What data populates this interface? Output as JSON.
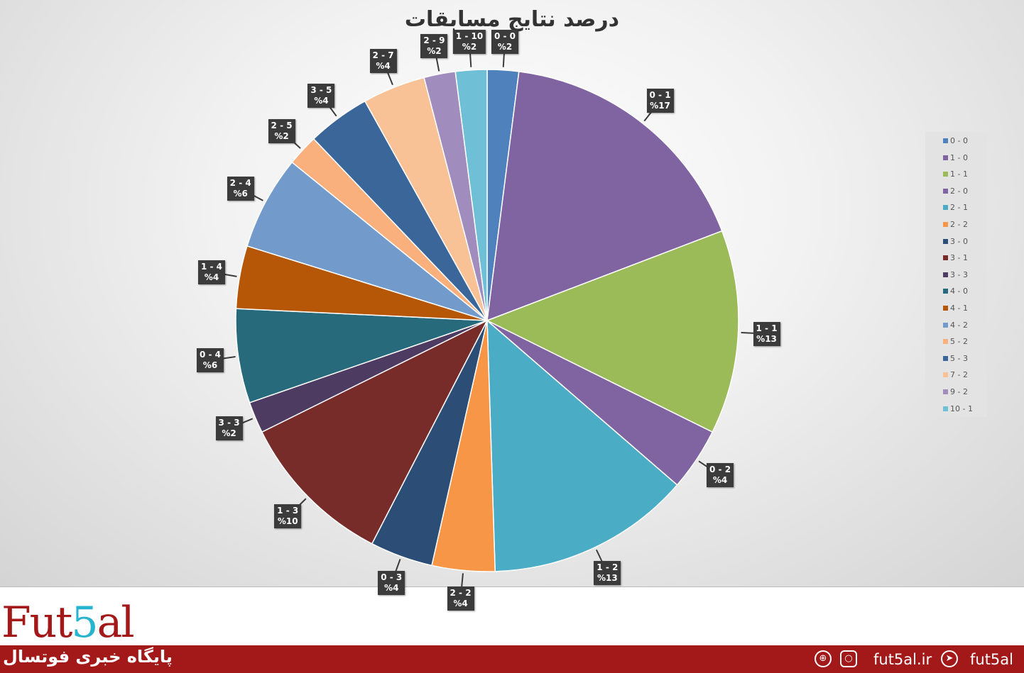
{
  "chart_data": {
    "type": "pie",
    "title": "درصد نتایج مسابقات",
    "legend_position": "right",
    "start_angle": "top, clockwise",
    "slices": [
      {
        "legend": "0 - 0",
        "label": "0 - 0",
        "value": 2,
        "value_label": "%2",
        "color": "#4f81bd"
      },
      {
        "legend": "1 - 0",
        "label": "0 - 1",
        "value": 17,
        "value_label": "%17",
        "color": "#8064a2"
      },
      {
        "legend": "1 - 1",
        "label": "1 - 1",
        "value": 13,
        "value_label": "%13",
        "color": "#9bbb59"
      },
      {
        "legend": "2 - 0",
        "label": "0 - 2",
        "value": 4,
        "value_label": "%4",
        "color": "#8064a2"
      },
      {
        "legend": "2 - 1",
        "label": "1 - 2",
        "value": 13,
        "value_label": "%13",
        "color": "#4bacc6"
      },
      {
        "legend": "2 - 2",
        "label": "2 - 2",
        "value": 4,
        "value_label": "%4",
        "color": "#f79646"
      },
      {
        "legend": "3 - 0",
        "label": "0 - 3",
        "value": 4,
        "value_label": "%4",
        "color": "#2c4d75"
      },
      {
        "legend": "3 - 1",
        "label": "1 - 3",
        "value": 10,
        "value_label": "%10",
        "color": "#772c2a"
      },
      {
        "legend": "3 - 3",
        "label": "3 - 3",
        "value": 2,
        "value_label": "%2",
        "color": "#4d3b62"
      },
      {
        "legend": "4 - 0",
        "label": "0 - 4",
        "value": 6,
        "value_label": "%6",
        "color": "#276a7c"
      },
      {
        "legend": "4 - 1",
        "label": "1 - 4",
        "value": 4,
        "value_label": "%4",
        "color": "#b65708"
      },
      {
        "legend": "4 - 2",
        "label": "2 - 4",
        "value": 6,
        "value_label": "%6",
        "color": "#729aca"
      },
      {
        "legend": "5 - 2",
        "label": "2 - 5",
        "value": 2,
        "value_label": "%2",
        "color": "#fab07d"
      },
      {
        "legend": "5 - 3",
        "label": "3 - 5",
        "value": 4,
        "value_label": "%4",
        "color": "#3a6699"
      },
      {
        "legend": "7 - 2",
        "label": "2 - 7",
        "value": 4,
        "value_label": "%4",
        "color": "#f9c196"
      },
      {
        "legend": "9 - 2",
        "label": "2 - 9",
        "value": 2,
        "value_label": "%2",
        "color": "#a08dbd"
      },
      {
        "legend": "10 - 1",
        "label": "1 - 10",
        "value": 2,
        "value_label": "%2",
        "color": "#6fc0d6"
      }
    ]
  },
  "footer": {
    "logo": "Fut5al",
    "tagline": "پایگاه خبری فوتسال",
    "website": "fut5al.ir",
    "telegram": "fut5al",
    "icons": [
      "globe-icon",
      "instagram-icon",
      "telegram-icon"
    ],
    "brand_color": "#a3191a",
    "accent_color": "#27b4cf"
  }
}
